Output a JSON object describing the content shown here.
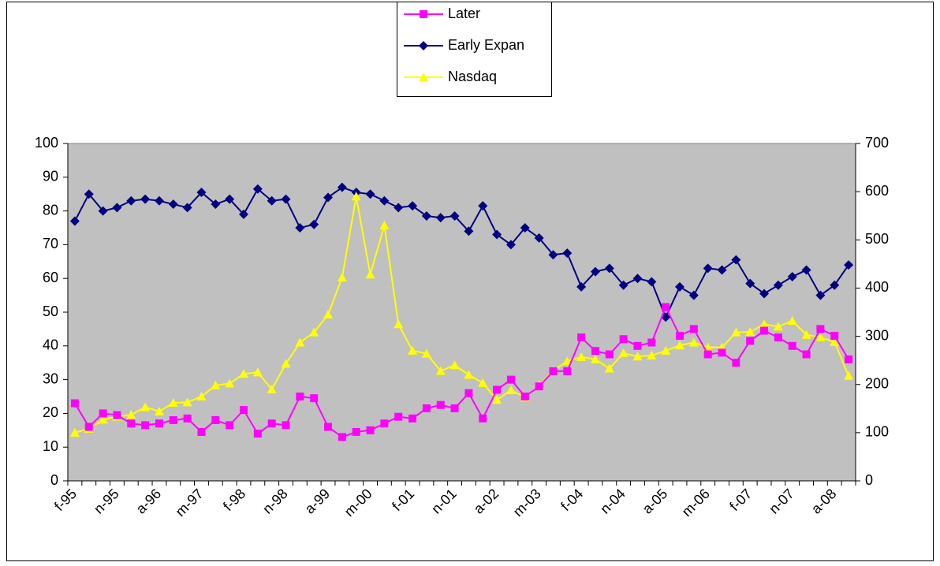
{
  "chart_data": {
    "type": "line",
    "categories": [
      "f-95",
      null,
      null,
      "n-95",
      null,
      null,
      "a-96",
      null,
      null,
      "m-97",
      null,
      null,
      "f-98",
      null,
      null,
      "n-98",
      null,
      null,
      "a-99",
      null,
      null,
      "m-00",
      null,
      null,
      "f-01",
      null,
      null,
      "n-01",
      null,
      null,
      "a-02",
      null,
      null,
      "m-03",
      null,
      null,
      "f-04",
      null,
      null,
      "n-04",
      null,
      null,
      "a-05",
      null,
      null,
      "m-06",
      null,
      null,
      "f-07",
      null,
      null,
      "n-07",
      null,
      null,
      "a-08",
      null
    ],
    "series": [
      {
        "name": "Later",
        "color": "#ff00ff",
        "marker": "square",
        "values": [
          23,
          16,
          20,
          19.5,
          17,
          16.5,
          17,
          18,
          18.5,
          14.5,
          18,
          16.5,
          21,
          14,
          17,
          16.5,
          25,
          24.5,
          16,
          13,
          14.5,
          15,
          17,
          19,
          18.5,
          21.5,
          22.5,
          21.5,
          26,
          18.5,
          27,
          30,
          25,
          28,
          32.5,
          32.5,
          42.5,
          38.5,
          37.5,
          42,
          40,
          41,
          51.5,
          43,
          45,
          37.5,
          38,
          35,
          41.5,
          44.5,
          42.5,
          40,
          37.5,
          45,
          43,
          36
        ]
      },
      {
        "name": "Early Expan",
        "color": "#000080",
        "marker": "diamond",
        "values": [
          77,
          85,
          80,
          81,
          83,
          83.5,
          83,
          82,
          81,
          85.5,
          82,
          83.5,
          79,
          86.5,
          83,
          83.5,
          75,
          76,
          84,
          87,
          85.5,
          85,
          83,
          81,
          81.5,
          78.5,
          78,
          78.5,
          74,
          81.5,
          73,
          70,
          75,
          72,
          67,
          67.5,
          57.5,
          62,
          63,
          58,
          60,
          59,
          48.5,
          57.5,
          55,
          63,
          62.5,
          65.5,
          58.5,
          55.5,
          58,
          60.5,
          62.5,
          55,
          58,
          64
        ]
      },
      {
        "name": "Nasdaq",
        "color": "#ffff00",
        "marker": "triangle",
        "axis": "y2",
        "values": [
          100,
          108,
          127,
          133,
          137,
          153,
          144,
          162,
          163,
          175,
          198,
          202,
          222,
          225,
          190,
          243,
          287,
          308,
          345,
          422,
          590,
          428,
          530,
          325,
          270,
          264,
          228,
          240,
          220,
          203,
          168,
          188,
          173,
          198,
          229,
          248,
          257,
          252,
          233,
          265,
          258,
          260,
          270,
          281,
          287,
          277,
          277,
          308,
          309,
          325,
          320,
          332,
          303,
          298,
          288,
          218
        ]
      }
    ],
    "ylim": [
      0,
      100
    ],
    "yticks": [
      0,
      10,
      20,
      30,
      40,
      50,
      60,
      70,
      80,
      90,
      100
    ],
    "y2lim": [
      0,
      700
    ],
    "y2ticks": [
      0,
      100,
      200,
      300,
      400,
      500,
      600,
      700
    ],
    "grid": false,
    "legend": "top",
    "plot_background": "#c0c0c0"
  }
}
